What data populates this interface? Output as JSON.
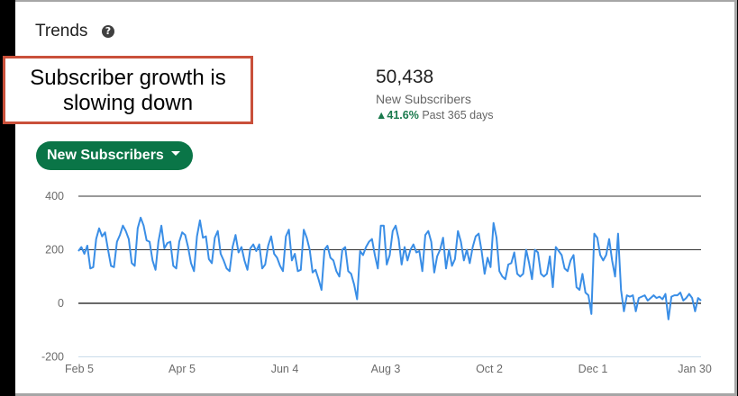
{
  "header": {
    "title": "Trends",
    "help_icon": "question-circle-icon"
  },
  "annotation": {
    "line1": "Subscriber growth is",
    "line2": "slowing down",
    "border_color": "#c9503a"
  },
  "stat": {
    "value": "50,438",
    "label": "New Subscribers",
    "delta": "41.6%",
    "delta_direction": "up",
    "period": "Past 365 days",
    "delta_color": "#1a7a4d"
  },
  "metric_dropdown": {
    "label": "New Subscribers",
    "bg_color": "#0a7547"
  },
  "colors": {
    "line": "#3a8ee6",
    "gridline": "#333333",
    "baseline": "#c9dcea"
  },
  "chart_data": {
    "type": "line",
    "title": "",
    "xlabel": "",
    "ylabel": "",
    "ylim": [
      -200,
      400
    ],
    "yticks": [
      400,
      200,
      0,
      -200
    ],
    "xticks": [
      "Feb 5",
      "Apr 5",
      "Jun 4",
      "Aug 3",
      "Oct 2",
      "Dec 1",
      "Jan 30"
    ],
    "grid": true,
    "legend": null,
    "series": [
      {
        "name": "New Subscribers",
        "sampling": "every 2 days, Feb 5 to Jan 30 (approx.)",
        "values": [
          195,
          210,
          185,
          215,
          130,
          135,
          240,
          280,
          250,
          265,
          200,
          140,
          135,
          230,
          255,
          290,
          270,
          240,
          150,
          140,
          280,
          320,
          290,
          235,
          230,
          160,
          125,
          230,
          290,
          205,
          225,
          230,
          140,
          130,
          230,
          265,
          255,
          210,
          150,
          120,
          250,
          310,
          245,
          250,
          165,
          150,
          245,
          270,
          185,
          160,
          130,
          120,
          210,
          255,
          190,
          210,
          160,
          125,
          205,
          220,
          195,
          220,
          130,
          145,
          215,
          250,
          185,
          170,
          140,
          120,
          250,
          275,
          160,
          185,
          120,
          125,
          275,
          245,
          200,
          115,
          125,
          90,
          50,
          200,
          215,
          170,
          160,
          120,
          100,
          200,
          210,
          120,
          110,
          70,
          15,
          195,
          180,
          210,
          230,
          240,
          180,
          130,
          290,
          290,
          145,
          180,
          270,
          290,
          240,
          145,
          210,
          160,
          200,
          220,
          190,
          195,
          120,
          255,
          270,
          230,
          115,
          175,
          200,
          245,
          130,
          200,
          140,
          165,
          270,
          230,
          160,
          200,
          150,
          210,
          250,
          260,
          195,
          110,
          170,
          135,
          300,
          245,
          120,
          100,
          90,
          145,
          150,
          190,
          110,
          100,
          110,
          200,
          150,
          90,
          200,
          190,
          110,
          100,
          110,
          175,
          60,
          210,
          195,
          180,
          130,
          120,
          160,
          180,
          60,
          50,
          110,
          40,
          30,
          -40,
          260,
          245,
          180,
          160,
          180,
          240,
          160,
          100,
          260,
          50,
          -30,
          30,
          25,
          30,
          -30,
          20,
          25,
          30,
          10,
          20,
          30,
          20,
          25,
          15,
          35,
          -60,
          25,
          30,
          30,
          40,
          10,
          20,
          35,
          20,
          -30,
          20,
          10
        ]
      }
    ]
  }
}
